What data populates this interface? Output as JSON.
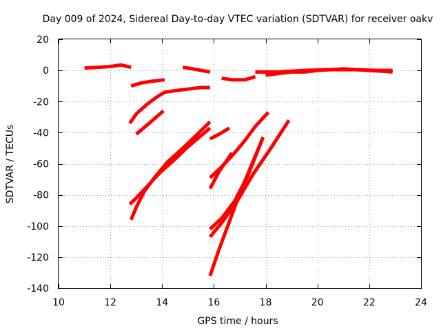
{
  "chart_data": {
    "type": "line",
    "title": "Day 009 of 2024, Sidereal Day-to-day VTEC variation (SDTVAR) for receiver oakv",
    "xlabel": "GPS time / hours",
    "ylabel": "SDTVAR / TECUs",
    "xlim": [
      10,
      24
    ],
    "ylim": [
      -140,
      20
    ],
    "xticks": [
      "10",
      "12",
      "14",
      "16",
      "18",
      "20",
      "22",
      "24"
    ],
    "yticks": [
      "20",
      "0",
      "-20",
      "-40",
      "-60",
      "-80",
      "-100",
      "-120",
      "-140"
    ],
    "xtick_values": [
      10,
      12,
      14,
      16,
      18,
      20,
      22,
      24
    ],
    "ytick_values": [
      20,
      0,
      -20,
      -40,
      -60,
      -80,
      -100,
      -120,
      -140
    ],
    "grid": true,
    "legend": "none",
    "series_color": "#ff0000",
    "series": [
      {
        "name": "track-1",
        "x": [
          11.0,
          11.5,
          12.0,
          12.4,
          12.8
        ],
        "y": [
          1.5,
          2.0,
          2.5,
          3.5,
          2.0
        ]
      },
      {
        "name": "track-2",
        "x": [
          12.8,
          13.2,
          13.6,
          14.1
        ],
        "y": [
          -10,
          -8,
          -7,
          -6
        ]
      },
      {
        "name": "track-3",
        "x": [
          12.75,
          13.0,
          13.4,
          13.8,
          14.1,
          14.5,
          15.0,
          15.5,
          15.85
        ],
        "y": [
          -34,
          -28,
          -22,
          -17,
          -14,
          -13,
          -12,
          -11,
          -11
        ]
      },
      {
        "name": "track-4",
        "x": [
          13.0,
          13.5,
          14.05
        ],
        "y": [
          -41,
          -34,
          -26
        ]
      },
      {
        "name": "track-5",
        "x": [
          12.75,
          13.0,
          13.4,
          13.9,
          14.5,
          15.0,
          15.5,
          15.85
        ],
        "y": [
          -86,
          -82,
          -75,
          -66,
          -57,
          -49,
          -42,
          -37
        ]
      },
      {
        "name": "track-6",
        "x": [
          12.8,
          13.0,
          13.3,
          13.7,
          14.2,
          14.8,
          15.3,
          15.85
        ],
        "y": [
          -96,
          -88,
          -78,
          -69,
          -59,
          -50,
          -42,
          -33
        ]
      },
      {
        "name": "track-7",
        "x": [
          14.8,
          15.2,
          15.5,
          15.85
        ],
        "y": [
          2,
          1,
          0,
          -1
        ]
      },
      {
        "name": "track-8",
        "x": [
          15.85,
          16.2,
          16.6
        ],
        "y": [
          -44,
          -41,
          -37
        ]
      },
      {
        "name": "track-9",
        "x": [
          15.85,
          16.2,
          16.7
        ],
        "y": [
          -76,
          -65,
          -53
        ]
      },
      {
        "name": "track-10",
        "x": [
          15.85,
          16.3,
          16.8,
          17.2,
          17.6,
          18.1
        ],
        "y": [
          -69,
          -62,
          -53,
          -45,
          -36,
          -27
        ]
      },
      {
        "name": "track-11",
        "x": [
          15.85,
          16.3,
          16.8,
          17.3,
          17.9
        ],
        "y": [
          -102,
          -95,
          -84,
          -68,
          -43
        ]
      },
      {
        "name": "track-12",
        "x": [
          15.85,
          16.3,
          16.9,
          17.5,
          18.2,
          18.9
        ],
        "y": [
          -107,
          -98,
          -84,
          -67,
          -50,
          -32
        ]
      },
      {
        "name": "track-13",
        "x": [
          15.85,
          16.2,
          16.6,
          17.0,
          17.5,
          17.9
        ],
        "y": [
          -132,
          -115,
          -97,
          -79,
          -59,
          -43
        ]
      },
      {
        "name": "track-14",
        "x": [
          16.3,
          16.7,
          17.2,
          17.6
        ],
        "y": [
          -5,
          -6,
          -6,
          -4
        ]
      },
      {
        "name": "track-15",
        "x": [
          17.6,
          18.5,
          19.5,
          20.5,
          21.5,
          22.3,
          22.9
        ],
        "y": [
          -1,
          -1,
          0,
          0.5,
          0.5,
          0,
          0
        ]
      },
      {
        "name": "track-16",
        "x": [
          18.0,
          18.5,
          19.0,
          19.5,
          20.0,
          20.5,
          21.0,
          21.5,
          22.0,
          22.5,
          22.9
        ],
        "y": [
          -3,
          -2,
          -1,
          -1,
          0,
          0.5,
          1,
          0.5,
          0,
          -0.5,
          -1
        ]
      }
    ]
  }
}
